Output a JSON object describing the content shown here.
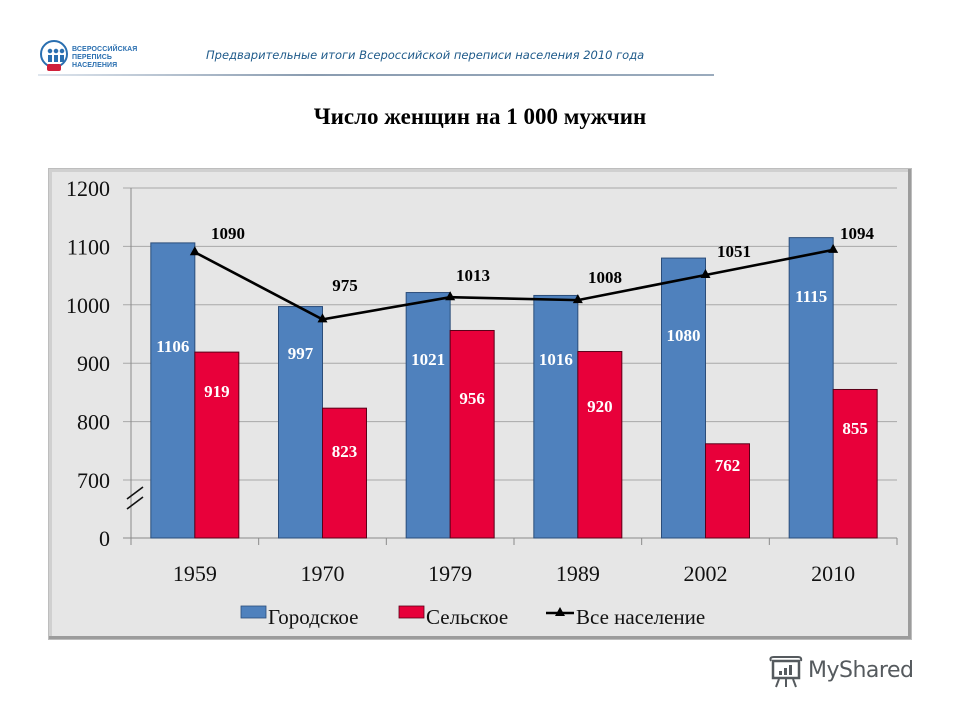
{
  "header": {
    "logo_line1": "ВСЕРОССИЙСКАЯ",
    "logo_line2": "ПЕРЕПИСЬ НАСЕЛЕНИЯ",
    "logo_badge": "2010",
    "subtitle": "Предварительные итоги Всероссийской переписи населения 2010 года"
  },
  "watermark": {
    "text": "MyShared",
    "icon": "presentation-board-icon"
  },
  "colors": {
    "urban": "#4f81bd",
    "rural": "#e8003a",
    "total": "#000000",
    "plot_bg": "#e6e6e6",
    "grid": "#a8a8a8"
  },
  "chart_data": {
    "type": "bar",
    "title": "Число женщин на 1 000 мужчин",
    "xlabel": "",
    "ylabel": "",
    "categories": [
      "1959",
      "1970",
      "1979",
      "1989",
      "2002",
      "2010"
    ],
    "series": [
      {
        "name": "Городское",
        "type": "bar",
        "color": "#4f81bd",
        "values": [
          1106,
          997,
          1021,
          1016,
          1080,
          1115
        ]
      },
      {
        "name": "Сельское",
        "type": "bar",
        "color": "#e8003a",
        "values": [
          919,
          823,
          956,
          920,
          762,
          855
        ]
      },
      {
        "name": "Все население",
        "type": "line",
        "marker": "triangle",
        "color": "#000000",
        "values": [
          1090,
          975,
          1013,
          1008,
          1051,
          1094
        ]
      }
    ],
    "yticks": [
      "0",
      "700",
      "800",
      "900",
      "1000",
      "1100",
      "1200"
    ],
    "ylim": [
      600,
      1200
    ],
    "axis_break": "between 0 and 700",
    "grid": true,
    "legend_position": "bottom"
  }
}
